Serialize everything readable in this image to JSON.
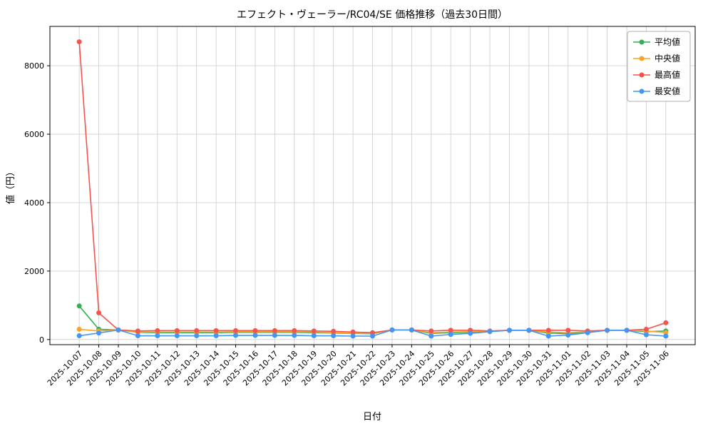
{
  "chart_data": {
    "type": "line",
    "title": "エフェクト・ヴェーラー/RC04/SE 価格推移（過去30日間）",
    "xlabel": "日付",
    "ylabel": "値（円）",
    "grid": true,
    "legend_position": "upper right",
    "yticks": [
      0,
      2000,
      4000,
      6000,
      8000
    ],
    "ylim": [
      -150,
      9150
    ],
    "x": [
      "2025-10-07",
      "2025-10-08",
      "2025-10-09",
      "2025-10-10",
      "2025-10-11",
      "2025-10-12",
      "2025-10-13",
      "2025-10-14",
      "2025-10-15",
      "2025-10-16",
      "2025-10-17",
      "2025-10-18",
      "2025-10-19",
      "2025-10-20",
      "2025-10-21",
      "2025-10-22",
      "2025-10-23",
      "2025-10-24",
      "2025-10-25",
      "2025-10-26",
      "2025-10-27",
      "2025-10-28",
      "2025-10-29",
      "2025-10-30",
      "2025-10-31",
      "2025-11-01",
      "2025-11-02",
      "2025-11-03",
      "2025-11-04",
      "2025-11-05",
      "2025-11-06"
    ],
    "series": [
      {
        "name": "平均値",
        "color": "#33b051",
        "values": [
          980,
          300,
          280,
          210,
          200,
          200,
          200,
          200,
          210,
          210,
          210,
          210,
          200,
          190,
          180,
          170,
          280,
          280,
          180,
          200,
          210,
          240,
          270,
          270,
          190,
          170,
          220,
          270,
          270,
          230,
          250
        ]
      },
      {
        "name": "中央値",
        "color": "#ffa229",
        "values": [
          300,
          250,
          280,
          220,
          220,
          220,
          220,
          220,
          230,
          230,
          230,
          230,
          220,
          200,
          190,
          180,
          280,
          280,
          200,
          220,
          230,
          240,
          270,
          270,
          220,
          200,
          230,
          270,
          270,
          250,
          200
        ]
      },
      {
        "name": "最高値",
        "color": "#f4544d",
        "values": [
          8700,
          780,
          280,
          250,
          260,
          260,
          260,
          260,
          260,
          260,
          260,
          260,
          250,
          240,
          220,
          200,
          280,
          280,
          250,
          270,
          270,
          250,
          270,
          270,
          270,
          270,
          250,
          270,
          270,
          300,
          490
        ]
      },
      {
        "name": "最安値",
        "color": "#4496f4",
        "values": [
          110,
          190,
          280,
          110,
          110,
          110,
          110,
          110,
          120,
          120,
          120,
          120,
          110,
          110,
          100,
          100,
          280,
          280,
          100,
          150,
          180,
          230,
          270,
          270,
          100,
          130,
          200,
          270,
          270,
          140,
          100
        ]
      }
    ]
  }
}
